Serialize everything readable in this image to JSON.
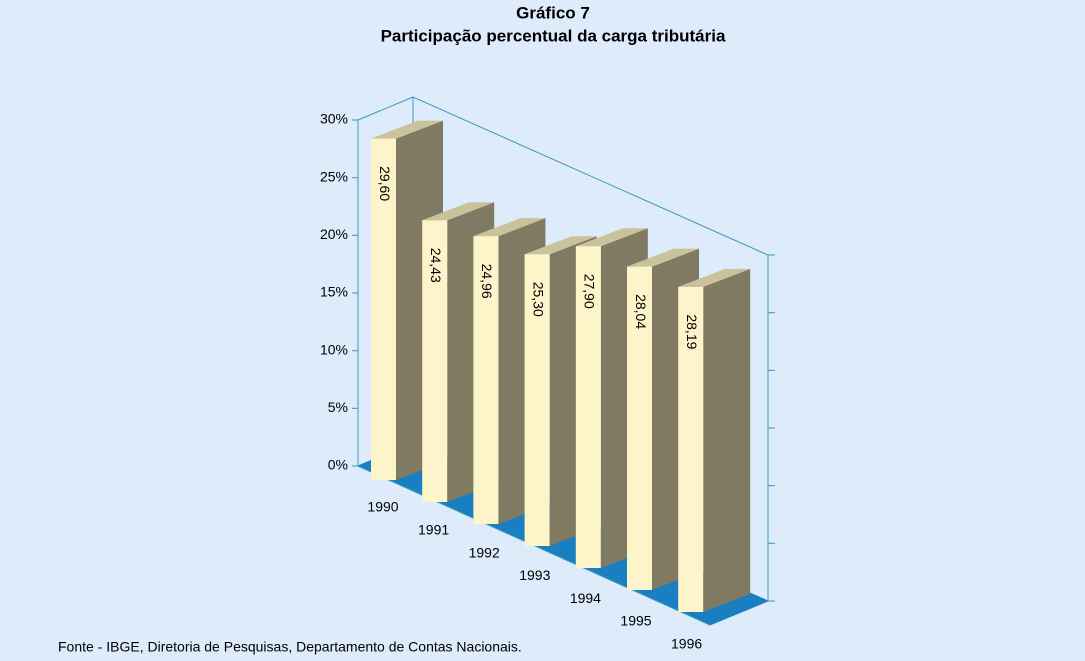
{
  "chart_data": {
    "type": "bar3d",
    "title": "Gráfico 7",
    "subtitle": "Participação percentual da carga tributária",
    "categories": [
      "1990",
      "1991",
      "1992",
      "1993",
      "1994",
      "1995",
      "1996"
    ],
    "values": [
      29.6,
      24.43,
      24.96,
      25.3,
      27.9,
      28.04,
      28.19
    ],
    "value_labels": [
      "29,60",
      "24,43",
      "24,96",
      "25,30",
      "27,90",
      "28,04",
      "28,19"
    ],
    "color": "#fdf5c9",
    "ylim": [
      0,
      30
    ],
    "yticks": [
      {
        "value": 0,
        "label": "0%"
      },
      {
        "value": 5,
        "label": "5%"
      },
      {
        "value": 10,
        "label": "10%"
      },
      {
        "value": 15,
        "label": "15%"
      },
      {
        "value": 20,
        "label": "20%"
      },
      {
        "value": 25,
        "label": "25%"
      },
      {
        "value": 30,
        "label": "30%"
      }
    ],
    "source": "Fonte - IBGE, Diretoria de Pesquisas, Departamento de Contas Nacionais."
  }
}
